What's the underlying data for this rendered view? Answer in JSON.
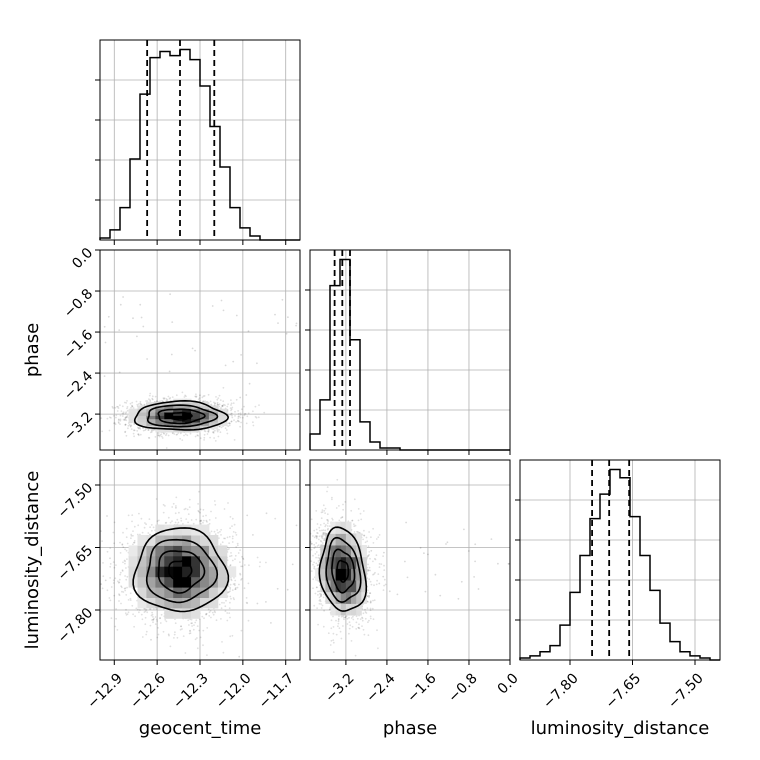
{
  "chart_data": {
    "type": "corner",
    "parameters": [
      "geocent_time",
      "phase",
      "luminosity_distance"
    ],
    "ranges": {
      "geocent_time": [
        -13.0,
        -11.6
      ],
      "phase": [
        -3.9,
        0.0
      ],
      "luminosity_distance": [
        -7.92,
        -7.44
      ]
    },
    "ticks": {
      "geocent_time": [
        -12.9,
        -12.6,
        -12.3,
        -12.0,
        -11.7
      ],
      "phase": [
        -3.2,
        -2.4,
        -1.6,
        -0.8,
        0.0
      ],
      "luminosity_distance": [
        -7.8,
        -7.65,
        -7.5
      ]
    },
    "tick_labels": {
      "geocent_time": [
        "−12.9",
        "−12.6",
        "−12.3",
        "−12.0",
        "−11.7"
      ],
      "phase": [
        "−3.2",
        "−2.4",
        "−1.6",
        "−0.8",
        "0.0"
      ],
      "luminosity_distance": [
        "−7.80",
        "−7.65",
        "−7.50"
      ]
    },
    "quantiles": {
      "geocent_time": [
        -12.67,
        -12.44,
        -12.2
      ],
      "phase": [
        -3.42,
        -3.27,
        -3.12
      ],
      "luminosity_distance": [
        -7.747,
        -7.706,
        -7.658
      ]
    },
    "histograms": {
      "geocent_time": {
        "edges": [
          -13.0,
          -12.93,
          -12.86,
          -12.79,
          -12.72,
          -12.65,
          -12.58,
          -12.51,
          -12.44,
          -12.37,
          -12.3,
          -12.23,
          -12.16,
          -12.09,
          -12.02,
          -11.95,
          -11.88,
          -11.81,
          -11.74,
          -11.67,
          -11.6
        ],
        "counts": [
          1,
          5,
          16,
          40,
          72,
          90,
          93,
          91,
          94,
          89,
          76,
          56,
          36,
          16,
          6,
          2,
          0,
          0,
          0,
          0
        ]
      },
      "phase": {
        "edges": [
          -3.9,
          -3.705,
          -3.51,
          -3.315,
          -3.12,
          -2.925,
          -2.73,
          -2.535,
          -2.34,
          -2.145,
          -1.95,
          -1.755,
          -1.56,
          -1.365,
          -1.17,
          -0.975,
          -0.78,
          -0.585,
          -0.39,
          -0.195,
          0.0
        ],
        "counts": [
          8,
          25,
          82,
          95,
          55,
          14,
          4,
          1,
          1,
          0,
          0,
          0,
          0,
          0,
          0,
          0,
          0,
          0,
          0,
          0
        ]
      },
      "luminosity_distance": {
        "edges": [
          -7.92,
          -7.896,
          -7.872,
          -7.848,
          -7.824,
          -7.8,
          -7.776,
          -7.752,
          -7.728,
          -7.704,
          -7.68,
          -7.656,
          -7.632,
          -7.608,
          -7.584,
          -7.56,
          -7.536,
          -7.512,
          -7.488,
          -7.464,
          -7.44
        ],
        "counts": [
          1,
          2,
          4,
          7,
          17,
          33,
          51,
          69,
          81,
          93,
          89,
          70,
          51,
          34,
          18,
          9,
          4,
          2,
          1,
          0
        ]
      }
    },
    "grid": true
  }
}
